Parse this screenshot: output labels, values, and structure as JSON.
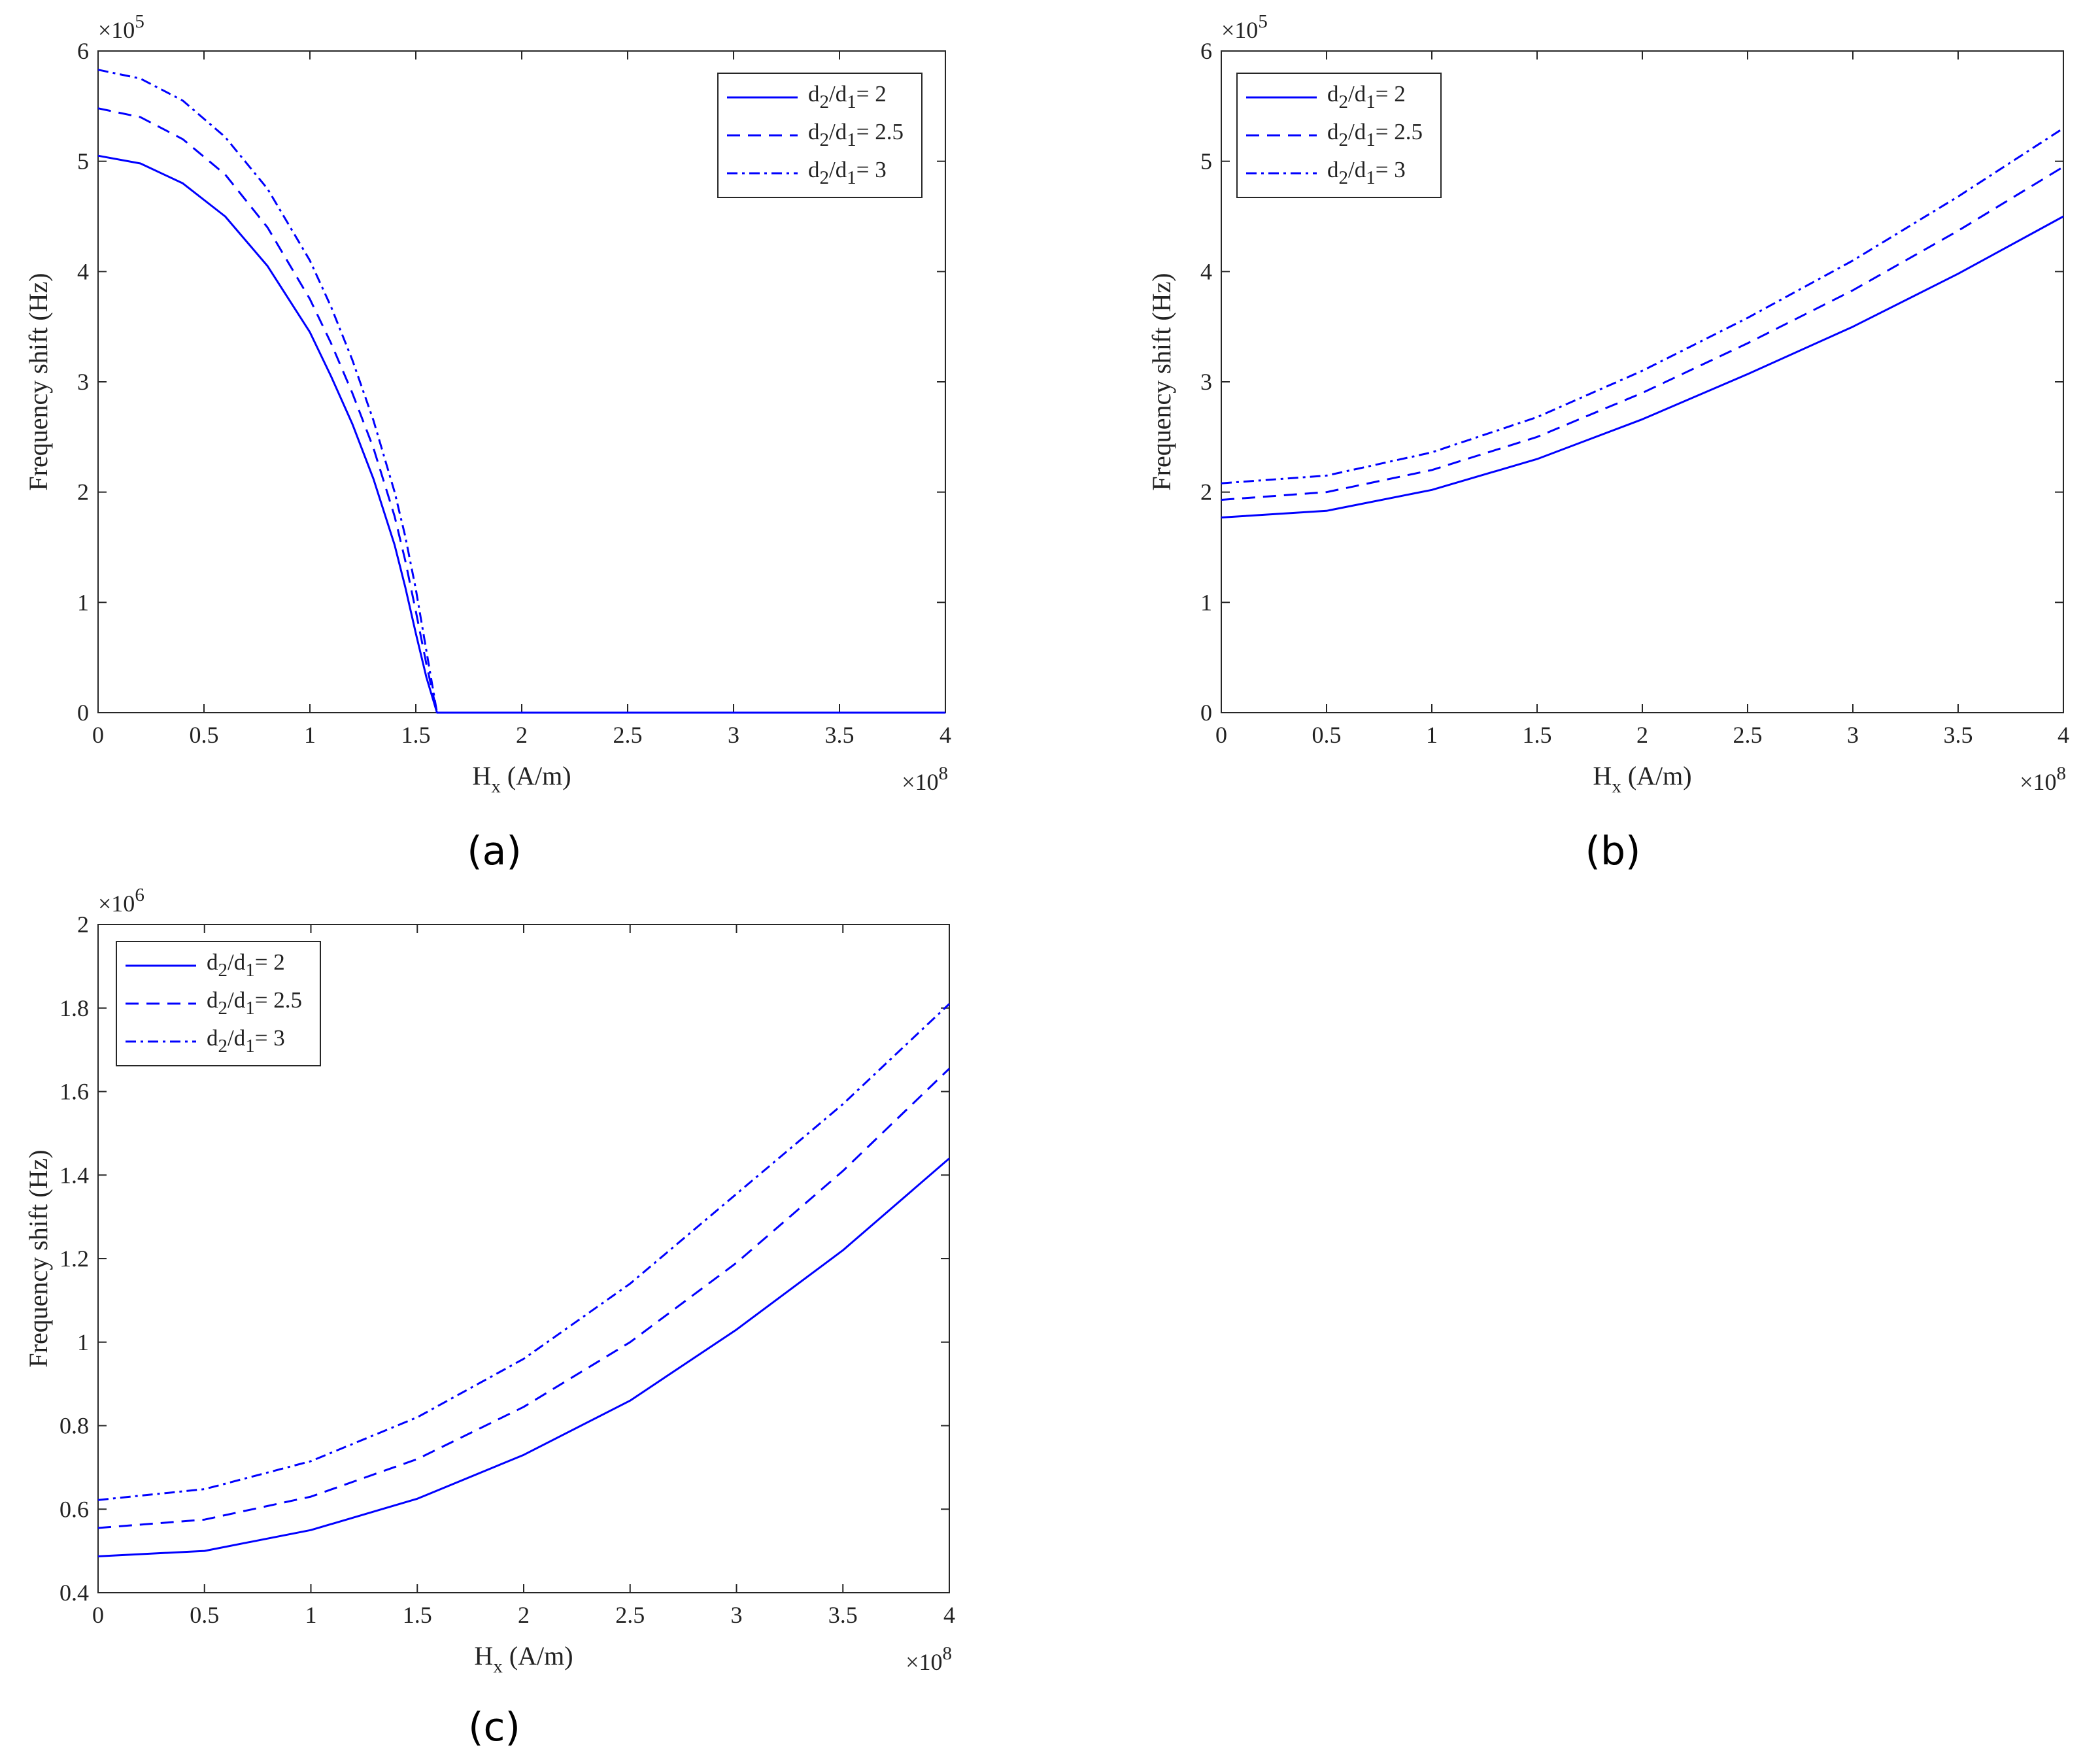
{
  "figure": {
    "panels": [
      "(a)",
      "(b)",
      "(c)"
    ]
  },
  "chart_data": [
    {
      "panel": "(a)",
      "type": "line",
      "xlabel": "H",
      "xlabel_sub": "x",
      "xlabel_unit": " (A/m)",
      "ylabel": "Frequency shift (Hz)",
      "x_multiplier": "×10",
      "x_exponent": "8",
      "y_multiplier": "×10",
      "y_exponent": "5",
      "xlim": [
        0,
        4
      ],
      "ylim": [
        0,
        6
      ],
      "xticks": [
        0,
        0.5,
        1,
        1.5,
        2,
        2.5,
        3,
        3.5,
        4
      ],
      "xtick_labels": [
        "0",
        "0.5",
        "1",
        "1.5",
        "2",
        "2.5",
        "3",
        "3.5",
        "4"
      ],
      "yticks": [
        0,
        1,
        2,
        3,
        4,
        5,
        6
      ],
      "ytick_labels": [
        "0",
        "1",
        "2",
        "3",
        "4",
        "5",
        "6"
      ],
      "legend_position": "top-right",
      "grid": false,
      "color": "#0000ff",
      "series": [
        {
          "name_main": "d",
          "name_sub1": "2",
          "name_mid": "/d",
          "name_sub2": "1",
          "name_val": "= 2",
          "style": "solid",
          "x": [
            0,
            0.2,
            0.4,
            0.6,
            0.8,
            1.0,
            1.1,
            1.2,
            1.3,
            1.4,
            1.45,
            1.5,
            1.55,
            1.6,
            2.0,
            3.0,
            4.0
          ],
          "y": [
            5.05,
            4.98,
            4.8,
            4.5,
            4.05,
            3.45,
            3.05,
            2.62,
            2.12,
            1.52,
            1.14,
            0.72,
            0.32,
            0.0,
            0.0,
            0.0,
            0.0
          ]
        },
        {
          "name_main": "d",
          "name_sub1": "2",
          "name_mid": "/d",
          "name_sub2": "1",
          "name_val": "= 2.5",
          "style": "dashed",
          "x": [
            0,
            0.2,
            0.4,
            0.6,
            0.8,
            1.0,
            1.1,
            1.2,
            1.3,
            1.4,
            1.45,
            1.5,
            1.55,
            1.6,
            2.0,
            3.0,
            4.0
          ],
          "y": [
            5.48,
            5.4,
            5.2,
            4.88,
            4.4,
            3.75,
            3.35,
            2.9,
            2.4,
            1.78,
            1.38,
            0.92,
            0.44,
            0.0,
            0.0,
            0.0,
            0.0
          ]
        },
        {
          "name_main": "d",
          "name_sub1": "2",
          "name_mid": "/d",
          "name_sub2": "1",
          "name_val": "= 3",
          "style": "dashdot",
          "x": [
            0,
            0.2,
            0.4,
            0.6,
            0.8,
            1.0,
            1.1,
            1.2,
            1.3,
            1.4,
            1.45,
            1.5,
            1.55,
            1.6,
            2.0,
            3.0,
            4.0
          ],
          "y": [
            5.83,
            5.75,
            5.55,
            5.22,
            4.75,
            4.1,
            3.68,
            3.2,
            2.65,
            2.0,
            1.6,
            1.12,
            0.56,
            0.0,
            0.0,
            0.0,
            0.0
          ]
        }
      ]
    },
    {
      "panel": "(b)",
      "type": "line",
      "xlabel": "H",
      "xlabel_sub": "x",
      "xlabel_unit": " (A/m)",
      "ylabel": "Frequency shift (Hz)",
      "x_multiplier": "×10",
      "x_exponent": "8",
      "y_multiplier": "×10",
      "y_exponent": "5",
      "xlim": [
        0,
        4
      ],
      "ylim": [
        0,
        6
      ],
      "xticks": [
        0,
        0.5,
        1,
        1.5,
        2,
        2.5,
        3,
        3.5,
        4
      ],
      "xtick_labels": [
        "0",
        "0.5",
        "1",
        "1.5",
        "2",
        "2.5",
        "3",
        "3.5",
        "4"
      ],
      "yticks": [
        0,
        1,
        2,
        3,
        4,
        5,
        6
      ],
      "ytick_labels": [
        "0",
        "1",
        "2",
        "3",
        "4",
        "5",
        "6"
      ],
      "legend_position": "top-left",
      "grid": false,
      "color": "#0000ff",
      "series": [
        {
          "name_main": "d",
          "name_sub1": "2",
          "name_mid": "/d",
          "name_sub2": "1",
          "name_val": "= 2",
          "style": "solid",
          "x": [
            0,
            0.5,
            1.0,
            1.5,
            2.0,
            2.5,
            3.0,
            3.5,
            4.0
          ],
          "y": [
            1.77,
            1.83,
            2.02,
            2.3,
            2.66,
            3.07,
            3.5,
            3.98,
            4.5
          ]
        },
        {
          "name_main": "d",
          "name_sub1": "2",
          "name_mid": "/d",
          "name_sub2": "1",
          "name_val": "= 2.5",
          "style": "dashed",
          "x": [
            0,
            0.5,
            1.0,
            1.5,
            2.0,
            2.5,
            3.0,
            3.5,
            4.0
          ],
          "y": [
            1.93,
            2.0,
            2.2,
            2.5,
            2.9,
            3.35,
            3.83,
            4.37,
            4.95
          ]
        },
        {
          "name_main": "d",
          "name_sub1": "2",
          "name_mid": "/d",
          "name_sub2": "1",
          "name_val": "= 3",
          "style": "dashdot",
          "x": [
            0,
            0.5,
            1.0,
            1.5,
            2.0,
            2.5,
            3.0,
            3.5,
            4.0
          ],
          "y": [
            2.08,
            2.15,
            2.36,
            2.68,
            3.1,
            3.58,
            4.1,
            4.68,
            5.3
          ]
        }
      ]
    },
    {
      "panel": "(c)",
      "type": "line",
      "xlabel": "H",
      "xlabel_sub": "x",
      "xlabel_unit": " (A/m)",
      "ylabel": "Frequency shift (Hz)",
      "x_multiplier": "×10",
      "x_exponent": "8",
      "y_multiplier": "×10",
      "y_exponent": "6",
      "xlim": [
        0,
        4
      ],
      "ylim": [
        0.4,
        2.0
      ],
      "xticks": [
        0,
        0.5,
        1,
        1.5,
        2,
        2.5,
        3,
        3.5,
        4
      ],
      "xtick_labels": [
        "0",
        "0.5",
        "1",
        "1.5",
        "2",
        "2.5",
        "3",
        "3.5",
        "4"
      ],
      "yticks": [
        0.4,
        0.6,
        0.8,
        1.0,
        1.2,
        1.4,
        1.6,
        1.8,
        2.0
      ],
      "ytick_labels": [
        "0.4",
        "0.6",
        "0.8",
        "1",
        "1.2",
        "1.4",
        "1.6",
        "1.8",
        "2"
      ],
      "legend_position": "top-left",
      "grid": false,
      "color": "#0000ff",
      "series": [
        {
          "name_main": "d",
          "name_sub1": "2",
          "name_mid": "/d",
          "name_sub2": "1",
          "name_val": "= 2",
          "style": "solid",
          "x": [
            0,
            0.5,
            1.0,
            1.5,
            2.0,
            2.5,
            3.0,
            3.5,
            4.0
          ],
          "y": [
            0.487,
            0.5,
            0.55,
            0.625,
            0.73,
            0.86,
            1.03,
            1.22,
            1.44
          ]
        },
        {
          "name_main": "d",
          "name_sub1": "2",
          "name_mid": "/d",
          "name_sub2": "1",
          "name_val": "= 2.5",
          "style": "dashed",
          "x": [
            0,
            0.5,
            1.0,
            1.5,
            2.0,
            2.5,
            3.0,
            3.5,
            4.0
          ],
          "y": [
            0.555,
            0.575,
            0.63,
            0.72,
            0.845,
            1.0,
            1.19,
            1.41,
            1.655
          ]
        },
        {
          "name_main": "d",
          "name_sub1": "2",
          "name_mid": "/d",
          "name_sub2": "1",
          "name_val": "= 3",
          "style": "dashdot",
          "x": [
            0,
            0.5,
            1.0,
            1.5,
            2.0,
            2.5,
            3.0,
            3.5,
            4.0
          ],
          "y": [
            0.622,
            0.648,
            0.715,
            0.82,
            0.96,
            1.14,
            1.355,
            1.57,
            1.81
          ]
        }
      ]
    }
  ]
}
